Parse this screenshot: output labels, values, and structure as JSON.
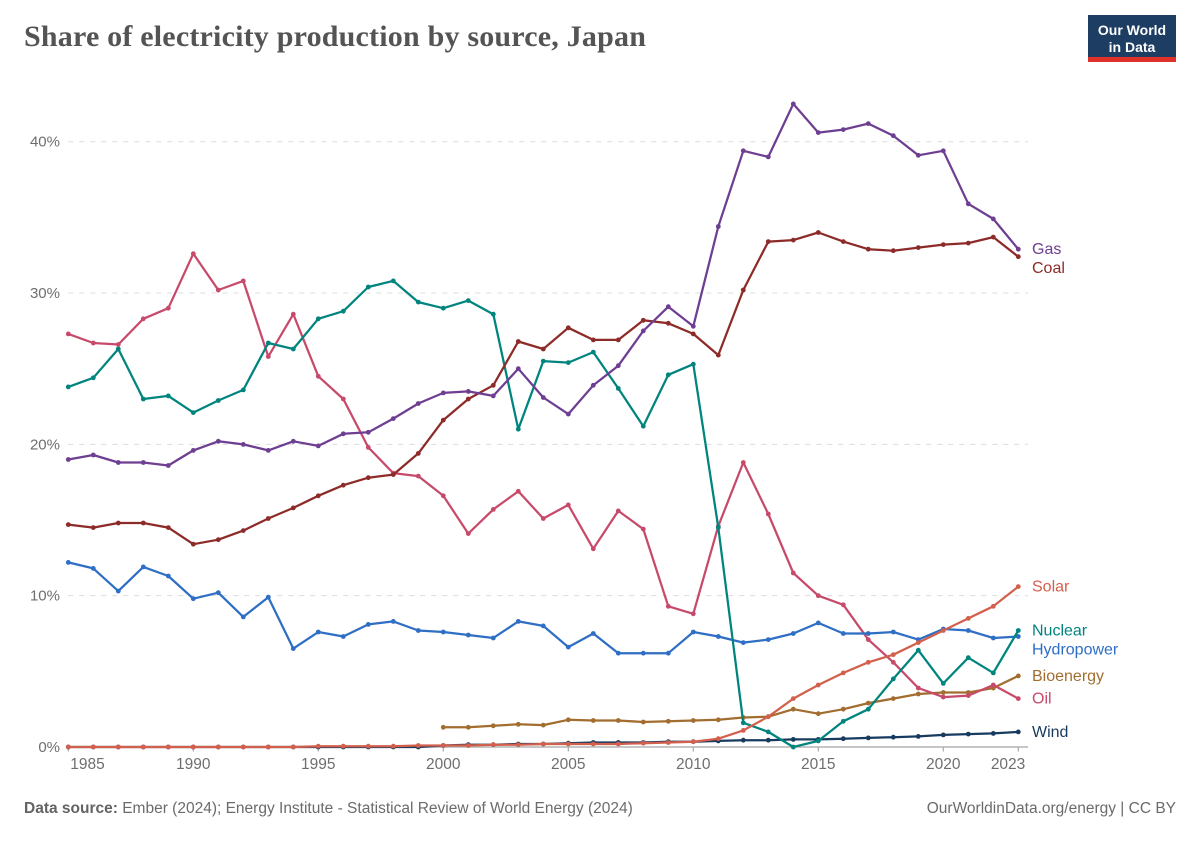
{
  "header": {
    "title": "Share of electricity production by source, Japan"
  },
  "logo": {
    "line1": "Our World",
    "line2": "in Data",
    "bg_color": "#1D3D63",
    "accent_color": "#E0302A"
  },
  "footer": {
    "source_label": "Data source:",
    "source_text": " Ember (2024); Energy Institute - Statistical Review of World Energy (2024)",
    "right_text": "OurWorldinData.org/energy | CC BY"
  },
  "chart_data": {
    "type": "line",
    "title": "Share of electricity production by source, Japan",
    "xlabel": "",
    "ylabel": "",
    "y_tick_suffix": "%",
    "ylim": [
      0,
      43.5
    ],
    "grid": "dashed-horizontal",
    "legend_position": "right-end-labels",
    "x_ticks": [
      1985,
      1990,
      1995,
      2000,
      2005,
      2010,
      2015,
      2020,
      2023
    ],
    "y_ticks": [
      0,
      10,
      20,
      30,
      40
    ],
    "x": [
      1985,
      1986,
      1987,
      1988,
      1989,
      1990,
      1991,
      1992,
      1993,
      1994,
      1995,
      1996,
      1997,
      1998,
      1999,
      2000,
      2001,
      2002,
      2003,
      2004,
      2005,
      2006,
      2007,
      2008,
      2009,
      2010,
      2011,
      2012,
      2013,
      2014,
      2015,
      2016,
      2017,
      2018,
      2019,
      2020,
      2021,
      2022,
      2023
    ],
    "series": [
      {
        "name": "Wind",
        "color": "#173A5F",
        "values": [
          0,
          0,
          0,
          0,
          0,
          0,
          0,
          0,
          0,
          0,
          0,
          0,
          0,
          0,
          0,
          0.1,
          0.15,
          0.15,
          0.2,
          0.2,
          0.25,
          0.3,
          0.3,
          0.3,
          0.35,
          0.35,
          0.4,
          0.45,
          0.45,
          0.5,
          0.5,
          0.55,
          0.6,
          0.65,
          0.7,
          0.8,
          0.85,
          0.9,
          1.0
        ]
      },
      {
        "name": "Bioenergy",
        "color": "#A26D2F",
        "values": [
          null,
          null,
          null,
          null,
          null,
          null,
          null,
          null,
          null,
          null,
          null,
          null,
          null,
          null,
          null,
          1.3,
          1.3,
          1.4,
          1.5,
          1.45,
          1.8,
          1.75,
          1.75,
          1.65,
          1.7,
          1.75,
          1.8,
          1.95,
          2.0,
          2.5,
          2.2,
          2.5,
          2.9,
          3.2,
          3.5,
          3.6,
          3.6,
          3.9,
          4.7
        ]
      },
      {
        "name": "Oil",
        "color": "#C84A6B",
        "values": [
          27.3,
          26.7,
          26.6,
          28.3,
          29.0,
          32.6,
          30.2,
          30.8,
          25.8,
          28.6,
          24.5,
          23.0,
          19.8,
          18.1,
          17.9,
          16.6,
          14.1,
          15.7,
          16.9,
          15.1,
          16.0,
          13.1,
          15.6,
          14.4,
          9.3,
          8.8,
          14.6,
          18.8,
          15.4,
          11.5,
          10.0,
          9.4,
          7.1,
          5.6,
          3.9,
          3.3,
          3.4,
          4.1,
          3.2
        ]
      },
      {
        "name": "Hydropower",
        "color": "#2E6EC4",
        "values": [
          12.2,
          11.8,
          10.3,
          11.9,
          11.3,
          9.8,
          10.2,
          8.6,
          9.9,
          6.5,
          7.6,
          7.3,
          8.1,
          8.3,
          7.7,
          7.6,
          7.4,
          7.2,
          8.3,
          8.0,
          6.6,
          7.5,
          6.2,
          6.2,
          6.2,
          7.6,
          7.3,
          6.9,
          7.1,
          7.5,
          8.2,
          7.5,
          7.5,
          7.6,
          7.1,
          7.8,
          7.7,
          7.2,
          7.3
        ]
      },
      {
        "name": "Nuclear",
        "color": "#00847E",
        "values": [
          23.8,
          24.4,
          26.3,
          23.0,
          23.2,
          22.1,
          22.9,
          23.6,
          26.7,
          26.3,
          28.3,
          28.8,
          30.4,
          30.8,
          29.4,
          29.0,
          29.5,
          28.6,
          21.0,
          25.5,
          25.4,
          26.1,
          23.7,
          21.2,
          24.6,
          25.3,
          14.5,
          1.6,
          1.0,
          0.0,
          0.4,
          1.7,
          2.5,
          4.5,
          6.4,
          4.2,
          5.9,
          4.9,
          7.7
        ]
      },
      {
        "name": "Coal",
        "color": "#8C2B28",
        "values": [
          14.7,
          14.5,
          14.8,
          14.8,
          14.5,
          13.4,
          13.7,
          14.3,
          15.1,
          15.8,
          16.6,
          17.3,
          17.8,
          18.0,
          19.4,
          21.6,
          23.0,
          23.9,
          26.8,
          26.3,
          27.7,
          26.9,
          26.9,
          28.2,
          28.0,
          27.3,
          25.9,
          30.2,
          33.4,
          33.5,
          34.0,
          33.4,
          32.9,
          32.8,
          33.0,
          33.2,
          33.3,
          33.7,
          32.4
        ]
      },
      {
        "name": "Gas",
        "color": "#6D3E91",
        "values": [
          19.0,
          19.3,
          18.8,
          18.8,
          18.6,
          19.6,
          20.2,
          20.0,
          19.6,
          20.2,
          19.9,
          20.7,
          20.8,
          21.7,
          22.7,
          23.4,
          23.5,
          23.2,
          25.0,
          23.1,
          22.0,
          23.9,
          25.2,
          27.5,
          29.1,
          27.8,
          34.4,
          39.4,
          39.0,
          42.5,
          40.6,
          40.8,
          41.2,
          40.4,
          39.1,
          39.4,
          35.9,
          34.9,
          32.9
        ]
      },
      {
        "name": "Solar",
        "color": "#D2604C",
        "values": [
          0,
          0,
          0,
          0,
          0,
          0,
          0,
          0,
          0,
          0,
          0.05,
          0.05,
          0.05,
          0.05,
          0.1,
          0.1,
          0.1,
          0.15,
          0.15,
          0.2,
          0.2,
          0.2,
          0.2,
          0.25,
          0.3,
          0.35,
          0.55,
          1.1,
          2.0,
          3.2,
          4.1,
          4.9,
          5.6,
          6.1,
          6.9,
          7.7,
          8.5,
          9.3,
          10.6
        ]
      }
    ],
    "label_order": [
      "Gas",
      "Coal",
      "Solar",
      "Nuclear",
      "Hydropower",
      "Bioenergy",
      "Oil",
      "Wind"
    ]
  }
}
